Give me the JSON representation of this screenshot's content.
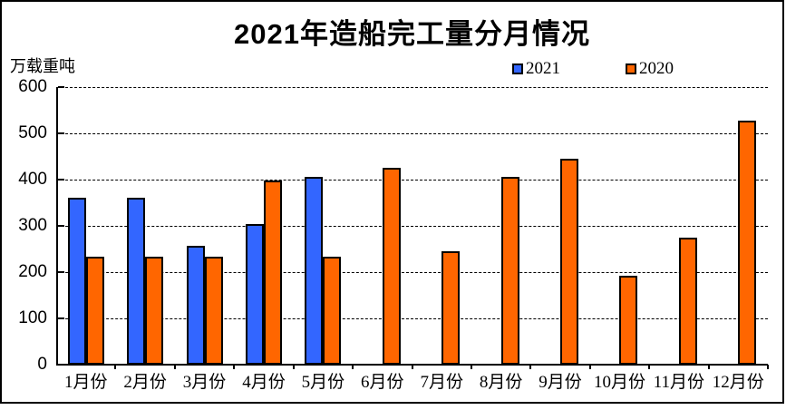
{
  "chart_data": {
    "type": "bar",
    "title": "2021年造船完工量分月情况",
    "unit_label": "万载重吨",
    "categories": [
      "1月份",
      "2月份",
      "3月份",
      "4月份",
      "5月份",
      "6月份",
      "7月份",
      "8月份",
      "9月份",
      "10月份",
      "11月份",
      "12月份"
    ],
    "series": [
      {
        "name": "2021",
        "color": "#3366FF",
        "values": [
          361,
          361,
          256,
          303,
          405,
          null,
          null,
          null,
          null,
          null,
          null,
          null
        ]
      },
      {
        "name": "2020",
        "color": "#FF6600",
        "values": [
          234,
          234,
          234,
          398,
          234,
          426,
          245,
          406,
          445,
          193,
          275,
          527
        ]
      }
    ],
    "ylim": [
      0,
      600
    ],
    "yticks": [
      0,
      100,
      200,
      300,
      400,
      500,
      600
    ],
    "grid": "horizontal-dashed",
    "legend_position": "top-center",
    "bar_border_color": "#000000",
    "background_color": "#FFFFFF"
  }
}
